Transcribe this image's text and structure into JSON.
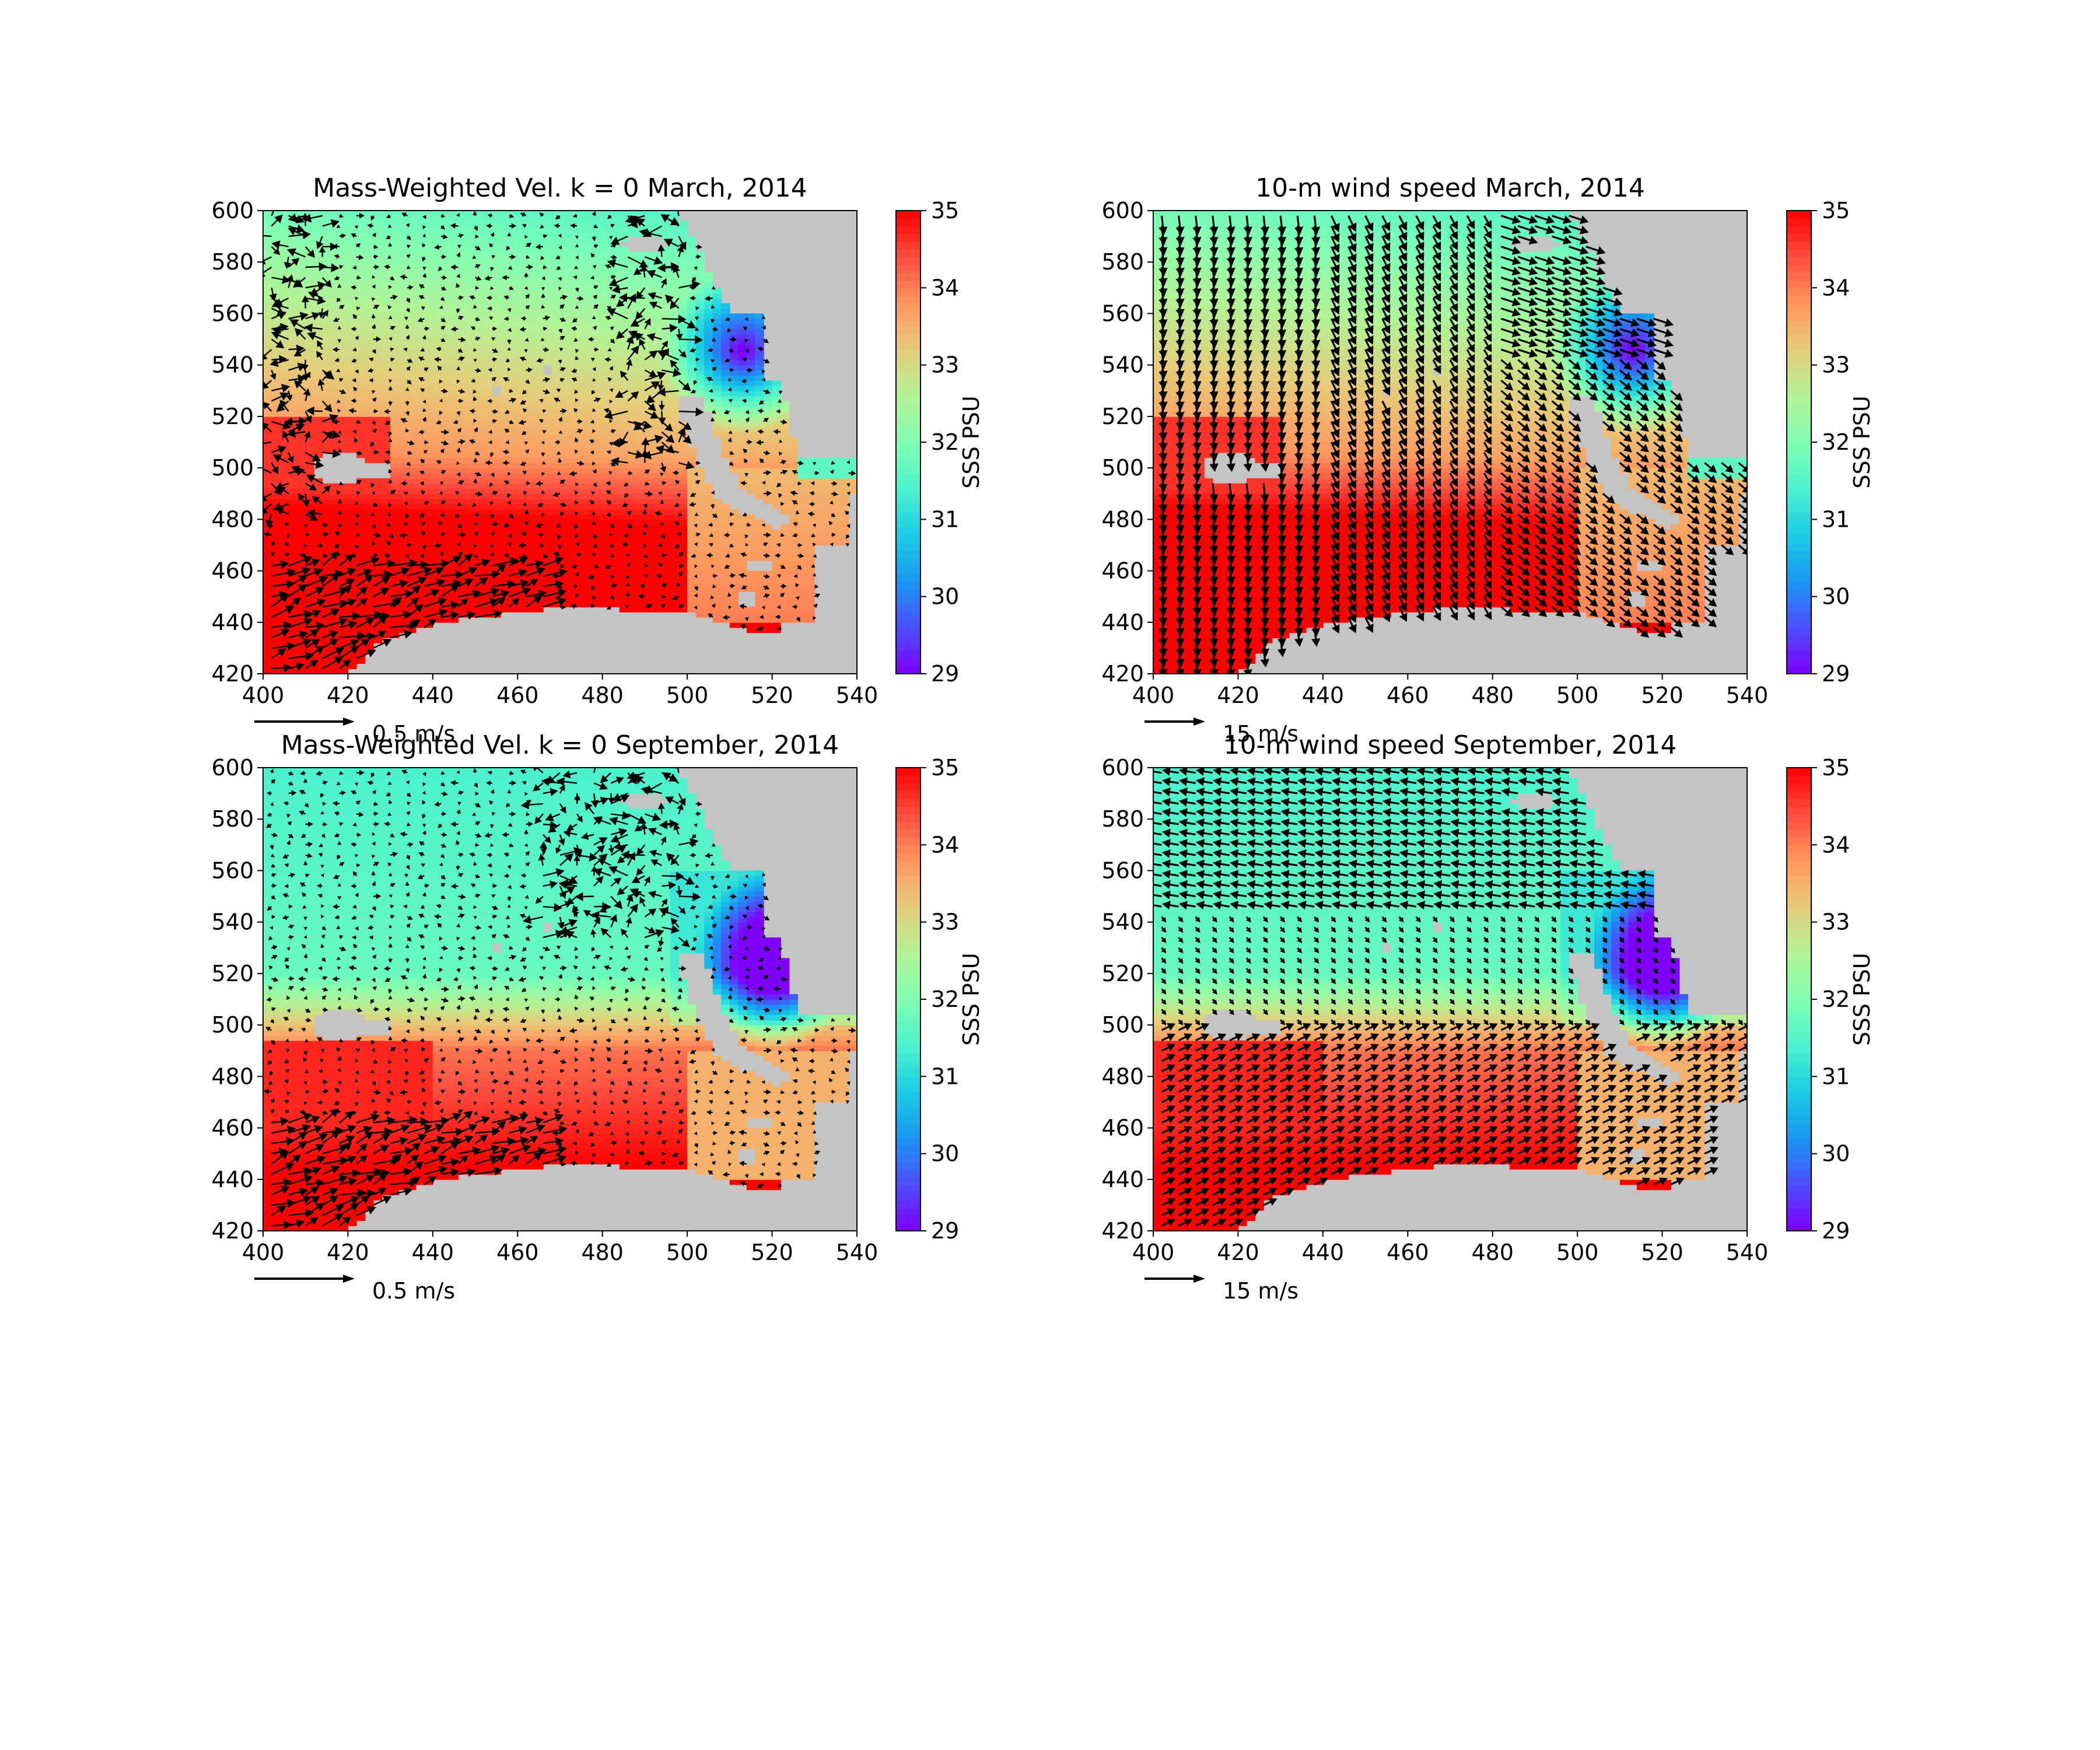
{
  "colors": {
    "land": "#c4c4c4",
    "arrow": "#000000",
    "colormap": [
      "#7f00ff",
      "#4d4dfc",
      "#1a96f3",
      "#19cce3",
      "#4cf2ce",
      "#80feb3",
      "#b2f396",
      "#e6cc7a",
      "#ff965d",
      "#ff4d3f",
      "#ff0000"
    ]
  },
  "chart_data": [
    {
      "type": "heatmap",
      "title": "Mass-Weighted Vel. k = 0 March, 2014",
      "x_ticks": [
        400,
        420,
        440,
        460,
        480,
        500,
        520,
        540
      ],
      "y_ticks": [
        420,
        440,
        460,
        480,
        500,
        520,
        540,
        560,
        580,
        600
      ],
      "xlim": [
        400,
        540
      ],
      "ylim": [
        420,
        600
      ],
      "colorbar": {
        "label": "SSS PSU",
        "ticks": [
          29,
          30,
          31,
          32,
          33,
          34,
          35
        ],
        "range": [
          29,
          35
        ]
      },
      "quiver_key": "0.5 m/s",
      "vector_field": "ocean"
    },
    {
      "type": "heatmap",
      "title": "10-m wind speed March, 2014",
      "x_ticks": [
        400,
        420,
        440,
        460,
        480,
        500,
        520,
        540
      ],
      "y_ticks": [
        420,
        440,
        460,
        480,
        500,
        520,
        540,
        560,
        580,
        600
      ],
      "xlim": [
        400,
        540
      ],
      "ylim": [
        420,
        600
      ],
      "colorbar": {
        "label": "SSS PSU",
        "ticks": [
          29,
          30,
          31,
          32,
          33,
          34,
          35
        ],
        "range": [
          29,
          35
        ]
      },
      "quiver_key": "15 m/s",
      "vector_field": "wind"
    },
    {
      "type": "heatmap",
      "title": "Mass-Weighted Vel. k = 0 September, 2014",
      "x_ticks": [
        400,
        420,
        440,
        460,
        480,
        500,
        520,
        540
      ],
      "y_ticks": [
        420,
        440,
        460,
        480,
        500,
        520,
        540,
        560,
        580,
        600
      ],
      "xlim": [
        400,
        540
      ],
      "ylim": [
        420,
        600
      ],
      "colorbar": {
        "label": "SSS PSU",
        "ticks": [
          29,
          30,
          31,
          32,
          33,
          34,
          35
        ],
        "range": [
          29,
          35
        ]
      },
      "quiver_key": "0.5 m/s",
      "vector_field": "ocean"
    },
    {
      "type": "heatmap",
      "title": "10-m wind speed September, 2014",
      "x_ticks": [
        400,
        420,
        440,
        460,
        480,
        500,
        520,
        540
      ],
      "y_ticks": [
        420,
        440,
        460,
        480,
        500,
        520,
        540,
        560,
        580,
        600
      ],
      "xlim": [
        400,
        540
      ],
      "ylim": [
        420,
        600
      ],
      "colorbar": {
        "label": "SSS PSU",
        "ticks": [
          29,
          30,
          31,
          32,
          33,
          34,
          35
        ],
        "range": [
          29,
          35
        ]
      },
      "quiver_key": "15 m/s",
      "vector_field": "wind"
    }
  ]
}
